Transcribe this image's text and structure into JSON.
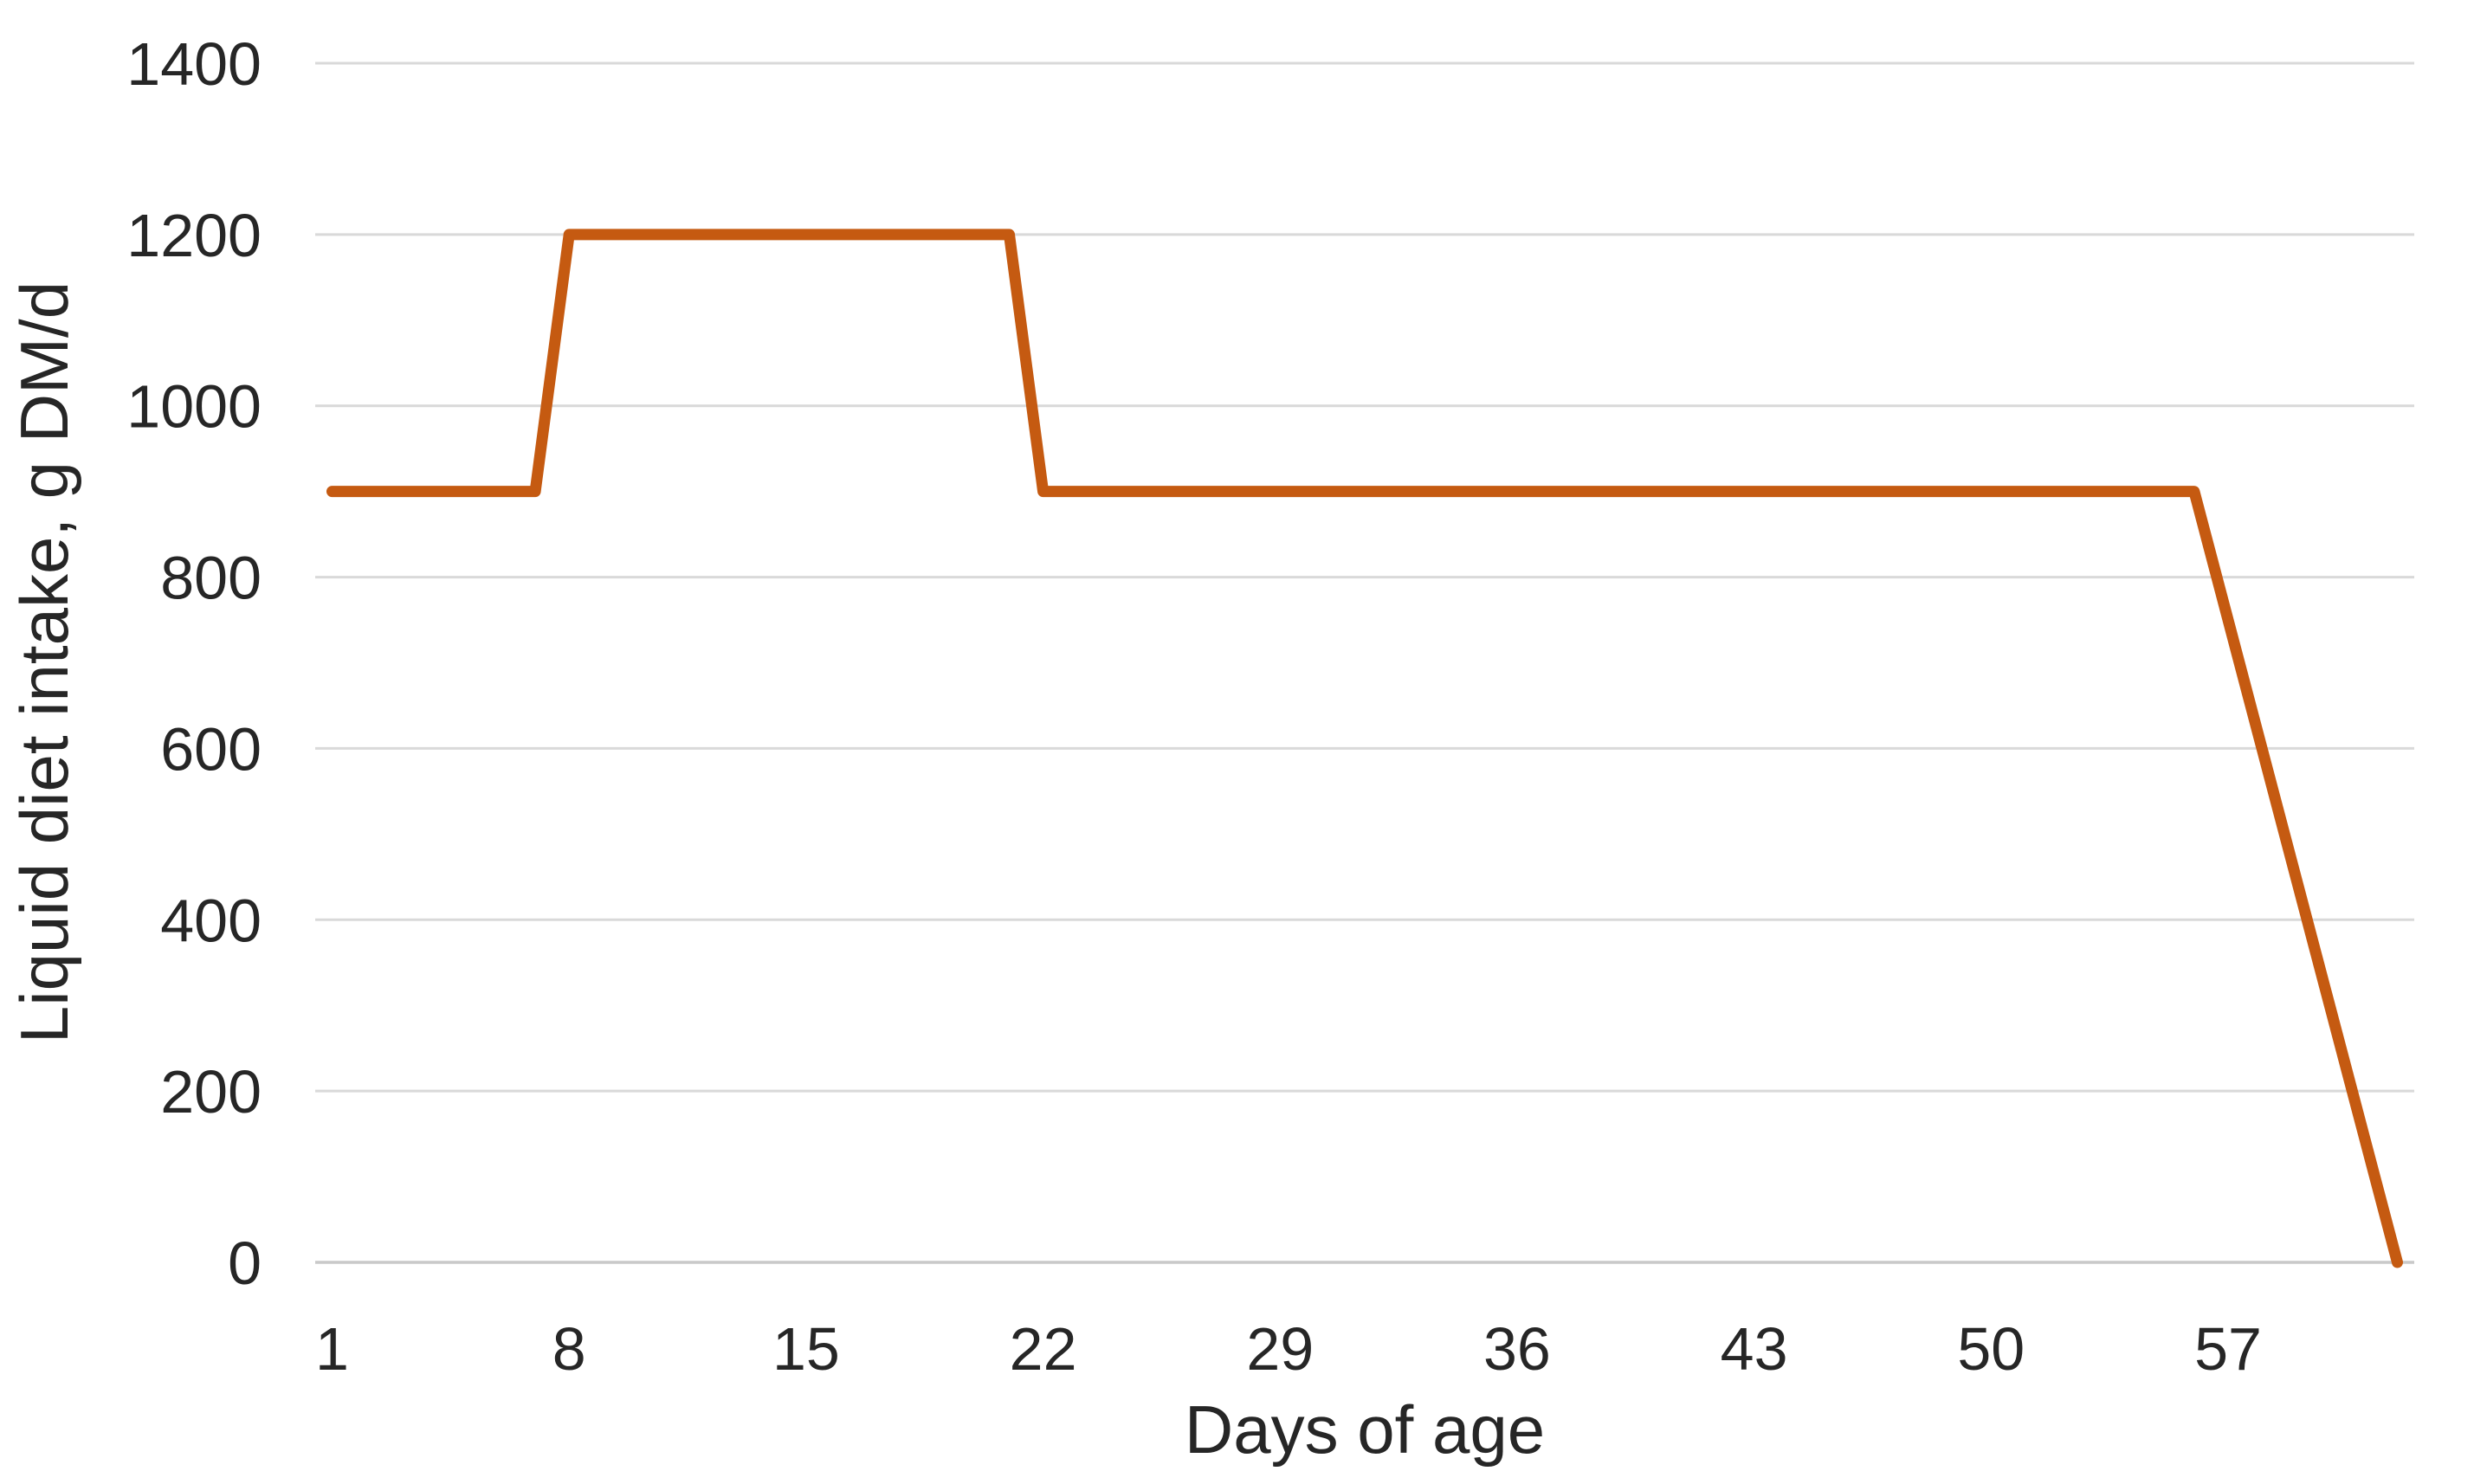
{
  "chart_data": {
    "type": "line",
    "title": "",
    "xlabel": "Days of age",
    "ylabel": "Liquid diet intake, g DM/d",
    "legend": "none",
    "grid": true,
    "ylim": [
      0,
      1400
    ],
    "yticks": [
      0,
      200,
      400,
      600,
      800,
      1000,
      1200,
      1400
    ],
    "xticks": [
      1,
      8,
      15,
      22,
      29,
      36,
      43,
      50,
      57
    ],
    "line_color": "#C55A11",
    "gridline_color": "#D9D9D9",
    "axis_color": "#C9C9C9",
    "text_color": "#262626",
    "x": [
      1,
      2,
      3,
      4,
      5,
      6,
      7,
      8,
      9,
      10,
      11,
      12,
      13,
      14,
      15,
      16,
      17,
      18,
      19,
      20,
      21,
      22,
      23,
      24,
      25,
      26,
      27,
      28,
      29,
      30,
      31,
      32,
      33,
      34,
      35,
      36,
      37,
      38,
      39,
      40,
      41,
      42,
      43,
      44,
      45,
      46,
      47,
      48,
      49,
      50,
      51,
      52,
      53,
      54,
      55,
      56,
      57,
      58,
      59,
      60,
      61,
      62
    ],
    "y": [
      900,
      900,
      900,
      900,
      900,
      900,
      900,
      1200,
      1200,
      1200,
      1200,
      1200,
      1200,
      1200,
      1200,
      1200,
      1200,
      1200,
      1200,
      1200,
      1200,
      900,
      900,
      900,
      900,
      900,
      900,
      900,
      900,
      900,
      900,
      900,
      900,
      900,
      900,
      900,
      900,
      900,
      900,
      900,
      900,
      900,
      900,
      900,
      900,
      900,
      900,
      900,
      900,
      900,
      900,
      900,
      900,
      900,
      900,
      900,
      750,
      600,
      450,
      300,
      150,
      0
    ]
  }
}
